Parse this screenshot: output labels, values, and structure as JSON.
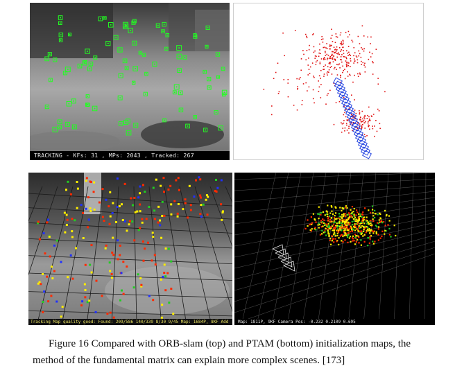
{
  "panels": {
    "orb_camera": {
      "status": "TRACKING  - KFs: 31 , MPs: 2043 , Tracked: 267"
    },
    "orb_map": {},
    "ptam_camera": {
      "status": "Tracking Map quality good: Found: 209/586 140/339 8/30 9/45 Map: 1684P, 8KF Add"
    },
    "ptam_map": {
      "status": "Map: 1811P, 9KF    Camera Pos: -0.232 0.2109 0.695"
    }
  },
  "caption": {
    "line1": "Figure 16 Compared with ORB-slam (top) and PTAM (bottom) initialization maps, the",
    "line2": "method of the fundamental matrix can explain more complex scenes. [173]"
  },
  "colors": {
    "orb_feature": "#22ff22",
    "orb_map_point": "#e01010",
    "orb_keyframe": "#2040e0",
    "ptam_red": "#ff2a00",
    "ptam_yellow": "#ffee00",
    "ptam_green": "#22cc22",
    "ptam_blue": "#2030ff",
    "grid_line": "#1a1a1a",
    "ptam_map_grid": "#9a9a9a"
  }
}
